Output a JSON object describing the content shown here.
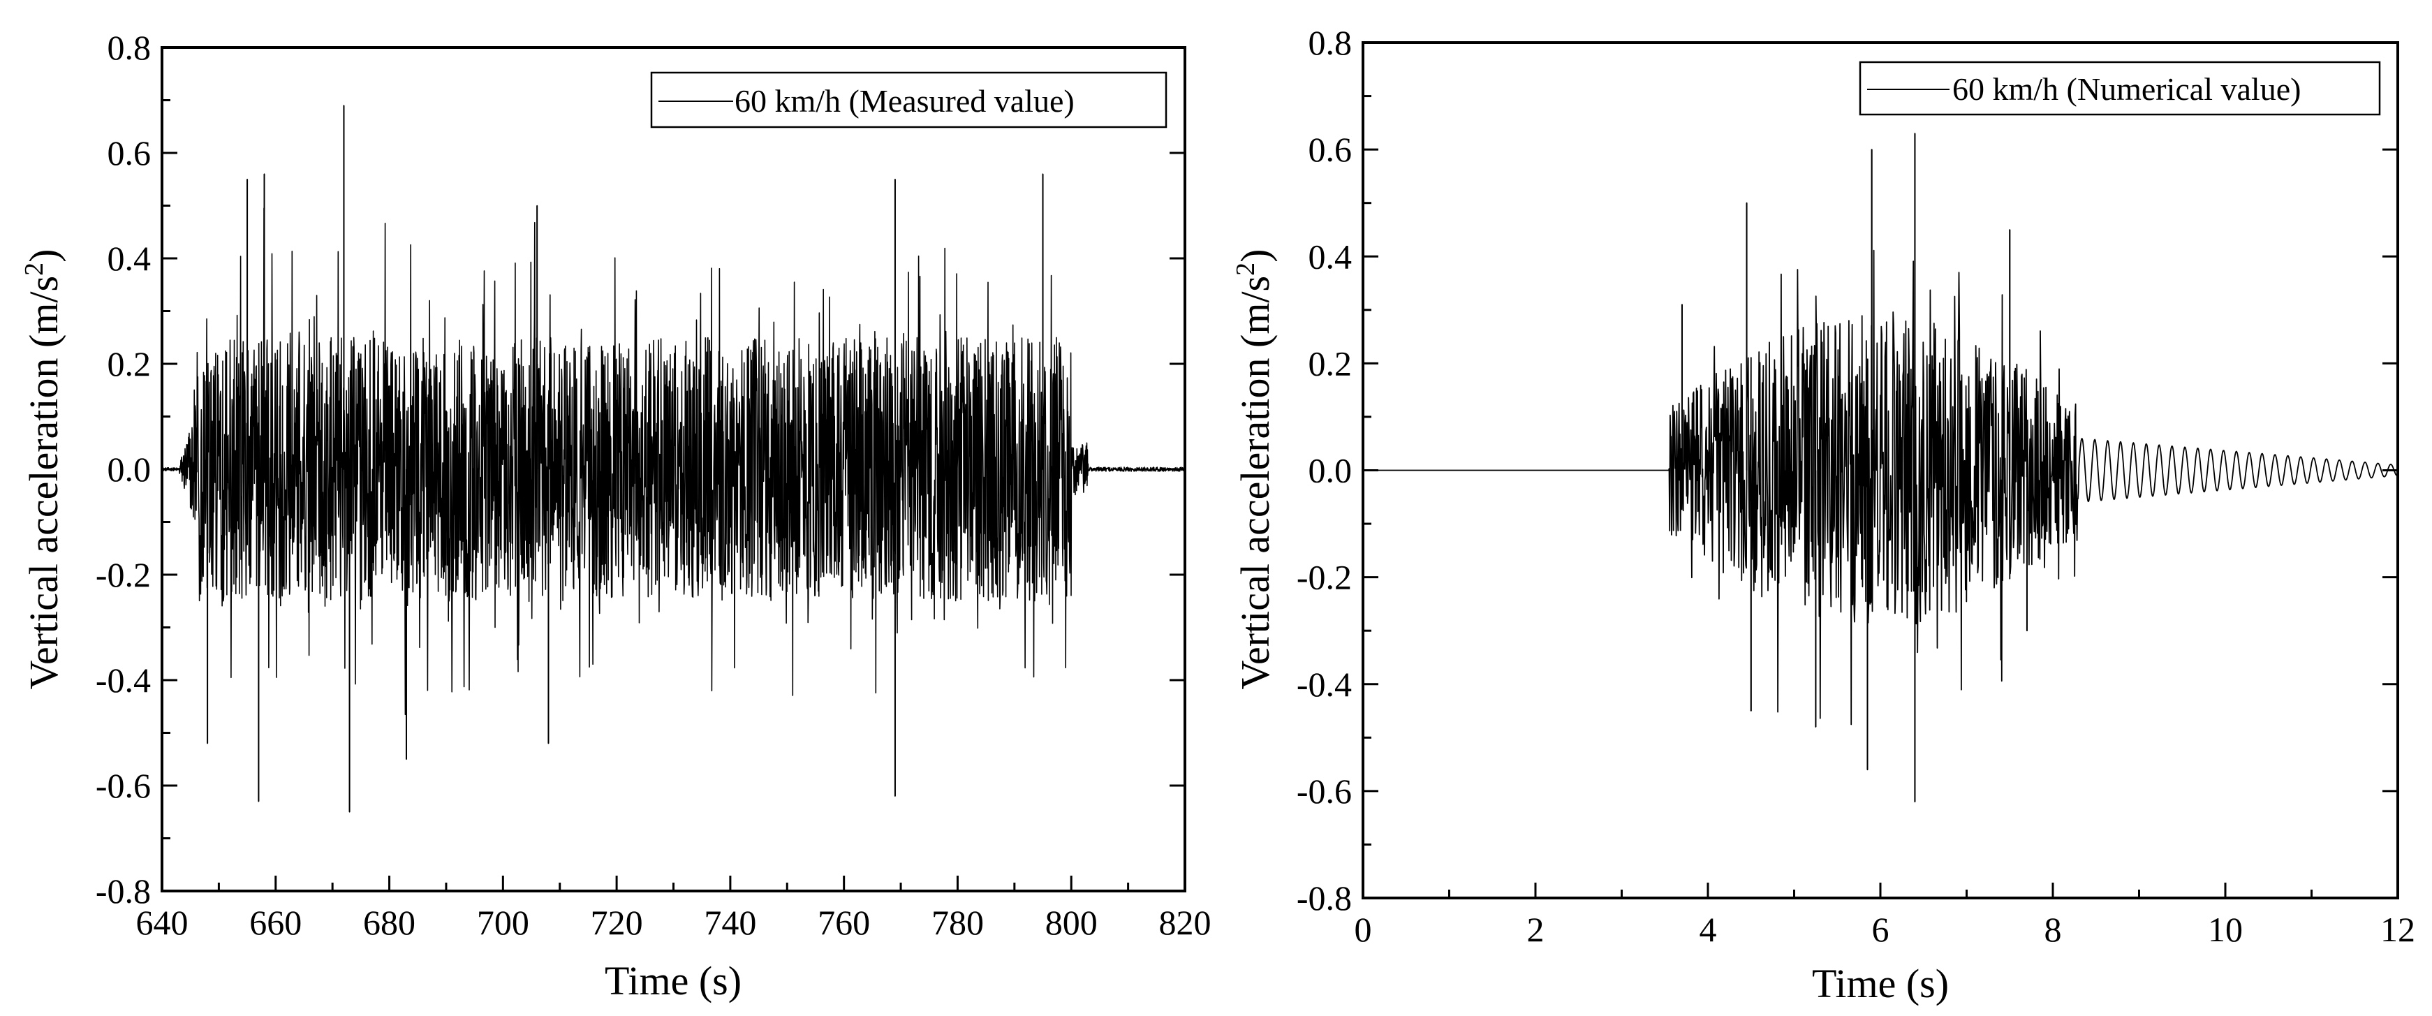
{
  "chart_data": [
    {
      "type": "line",
      "xlabel": "Time (s)",
      "ylabel": "Vertical acceleration (m/s²)",
      "ylabel_main": "Vertical acceleration (m/s",
      "ylabel_sup": "2",
      "ylabel_tail": ")",
      "xlim": [
        640,
        820
      ],
      "ylim": [
        -0.8,
        0.8
      ],
      "xticks": [
        640,
        660,
        680,
        700,
        720,
        740,
        760,
        780,
        800,
        820
      ],
      "xtick_labels": [
        "640",
        "660",
        "680",
        "700",
        "720",
        "740",
        "760",
        "780",
        "800",
        "820"
      ],
      "yticks": [
        -0.8,
        -0.6,
        -0.4,
        -0.2,
        0.0,
        0.2,
        0.4,
        0.6,
        0.8
      ],
      "ytick_labels": [
        "-0.8",
        "-0.6",
        "-0.4",
        "-0.2",
        "0.0",
        "0.2",
        "0.4",
        "0.6",
        "0.8"
      ],
      "legend_position": "top-right",
      "series": [
        {
          "name": "60 km/h (Measured value)",
          "signal": {
            "quiet_before": [
              640,
              643
            ],
            "active_window": [
              644,
              800
            ],
            "quiet_after": [
              801,
              820
            ],
            "typical_amplitude": 0.25,
            "peaks": [
              {
                "x": 658,
                "y": 0.56
              },
              {
                "x": 672,
                "y": 0.69
              },
              {
                "x": 673,
                "y": -0.65
              },
              {
                "x": 657,
                "y": -0.63
              },
              {
                "x": 769,
                "y": 0.55
              },
              {
                "x": 769,
                "y": -0.62
              },
              {
                "x": 795,
                "y": 0.56
              },
              {
                "x": 655,
                "y": 0.55
              },
              {
                "x": 648,
                "y": -0.52
              },
              {
                "x": 683,
                "y": -0.55
              },
              {
                "x": 706,
                "y": 0.5
              },
              {
                "x": 708,
                "y": -0.52
              }
            ]
          }
        }
      ]
    },
    {
      "type": "line",
      "xlabel": "Time (s)",
      "ylabel": "Vertical acceleration (m/s²)",
      "ylabel_main": "Vertical acceleration (m/s",
      "ylabel_sup": "2",
      "ylabel_tail": ")",
      "xlim": [
        0,
        12
      ],
      "ylim": [
        -0.8,
        0.8
      ],
      "xticks": [
        0,
        2,
        4,
        6,
        8,
        10,
        12
      ],
      "xtick_labels": [
        "0",
        "2",
        "4",
        "6",
        "8",
        "10",
        "12"
      ],
      "yticks": [
        -0.8,
        -0.6,
        -0.4,
        -0.2,
        0.0,
        0.2,
        0.4,
        0.6,
        0.8
      ],
      "ytick_labels": [
        "-0.8",
        "-0.6",
        "-0.4",
        "-0.2",
        "0.0",
        "0.2",
        "0.4",
        "0.6",
        "0.8"
      ],
      "legend_position": "top-right",
      "series": [
        {
          "name": "60 km/h (Numerical value)",
          "signal": {
            "flat_until": 3.55,
            "active_window": [
              3.55,
              8.3
            ],
            "decay_window": [
              8.3,
              12
            ],
            "decay_amplitude_start": 0.06,
            "decay_amplitude_end": 0.01,
            "peaks": [
              {
                "x": 6.4,
                "y": 0.63
              },
              {
                "x": 5.9,
                "y": 0.6
              },
              {
                "x": 4.45,
                "y": 0.5
              },
              {
                "x": 6.4,
                "y": -0.62
              },
              {
                "x": 5.85,
                "y": -0.56
              },
              {
                "x": 5.25,
                "y": -0.48
              },
              {
                "x": 4.5,
                "y": -0.45
              },
              {
                "x": 3.7,
                "y": 0.31
              },
              {
                "x": 7.5,
                "y": 0.45
              },
              {
                "x": 7.7,
                "y": -0.3
              }
            ]
          }
        }
      ]
    }
  ]
}
